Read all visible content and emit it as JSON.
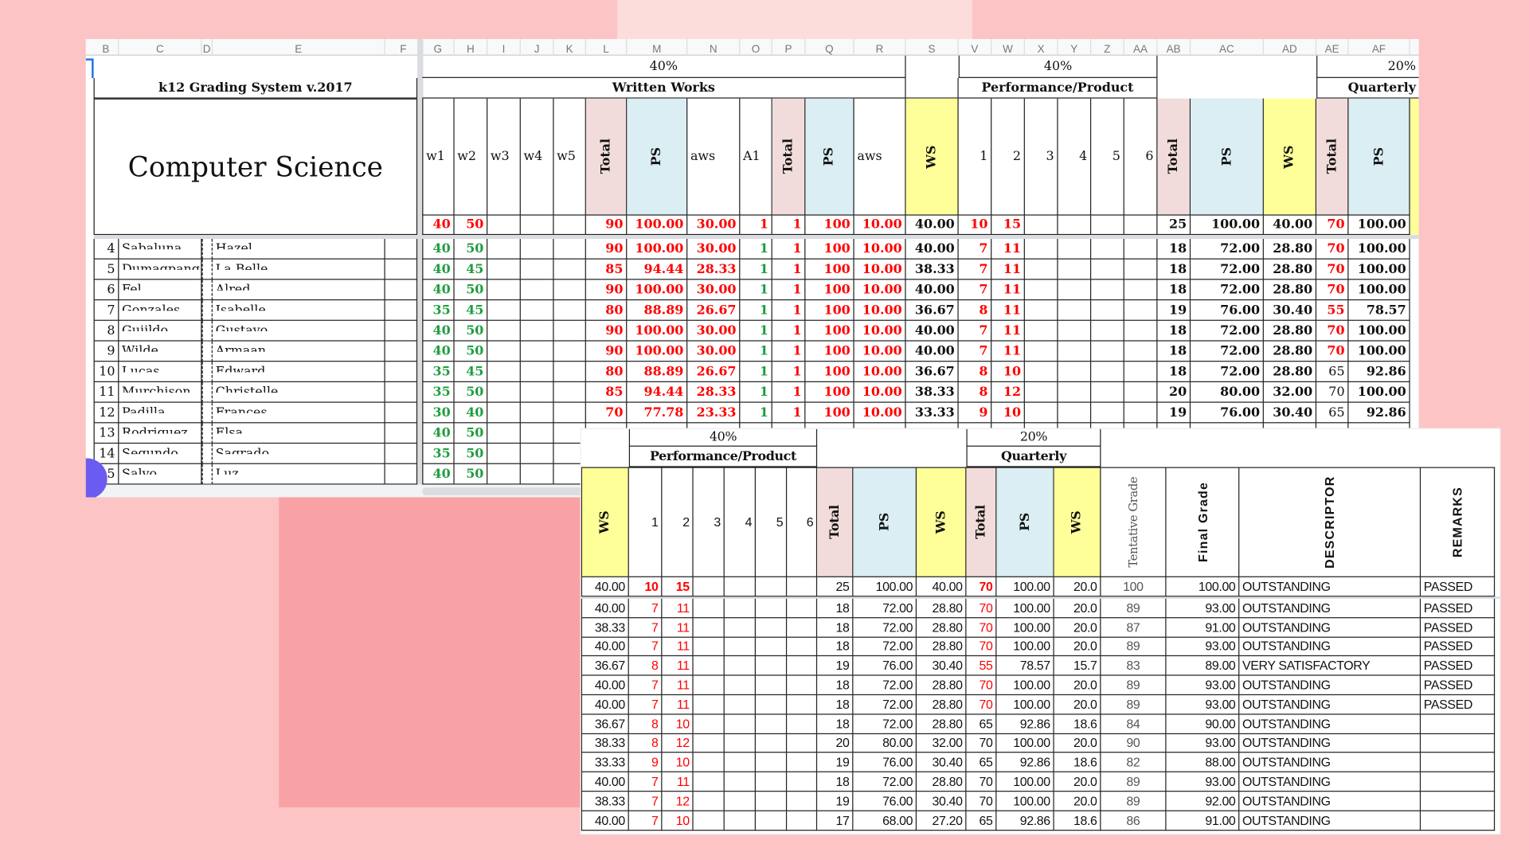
{
  "colors": {
    "background": "#fcc4c4",
    "red": "#ff0000",
    "green": "#1e9e3e",
    "total_fill": "#f2dcdb",
    "ps_fill": "#daeef3",
    "ws_fill": "#ffff99",
    "accent": "#6a5cf0"
  },
  "sheet1": {
    "col_letters": [
      "B",
      "C",
      "D",
      "E",
      "F",
      "G",
      "H",
      "I",
      "J",
      "K",
      "L",
      "M",
      "N",
      "O",
      "P",
      "Q",
      "R",
      "S",
      "V",
      "W",
      "X",
      "Y",
      "Z",
      "AA",
      "AB",
      "AC",
      "AD",
      "AE",
      "AF"
    ],
    "title": "k12 Grading System v.2017",
    "subject": "Computer Science",
    "ww_weight": "40%",
    "ww_label": "Written Works",
    "pt_weight": "40%",
    "pt_label": "Performance/Product",
    "qa_weight": "20%",
    "qa_label": "Quarterly",
    "headers": [
      "w1",
      "w2",
      "w3",
      "w4",
      "w5",
      "Total",
      "PS",
      "aws",
      "A1",
      "Total",
      "PS",
      "aws",
      "WS",
      "1",
      "2",
      "3",
      "4",
      "5",
      "6",
      "Total",
      "PS",
      "WS",
      "Total",
      "PS"
    ],
    "max_row": [
      "40",
      "50",
      "",
      "",
      "",
      "90",
      "100.00",
      "30.00",
      "1",
      "1",
      "100",
      "10.00",
      "40.00",
      "10",
      "15",
      "",
      "",
      "",
      "",
      "25",
      "100.00",
      "40.00",
      "70",
      "100.00"
    ],
    "rows": [
      {
        "num": "4",
        "last": "Sabaluna",
        "first": "Hazel",
        "q_total_red": true,
        "cells": [
          "40",
          "50",
          "",
          "",
          "",
          "90",
          "100.00",
          "30.00",
          "1",
          "1",
          "100",
          "10.00",
          "40.00",
          "7",
          "11",
          "",
          "",
          "",
          "",
          "18",
          "72.00",
          "28.80",
          "70",
          "100.00"
        ]
      },
      {
        "num": "5",
        "last": "Dumagpang",
        "first": "La Belle",
        "q_total_red": true,
        "cells": [
          "40",
          "45",
          "",
          "",
          "",
          "85",
          "94.44",
          "28.33",
          "1",
          "1",
          "100",
          "10.00",
          "38.33",
          "7",
          "11",
          "",
          "",
          "",
          "",
          "18",
          "72.00",
          "28.80",
          "70",
          "100.00"
        ]
      },
      {
        "num": "6",
        "last": "Fel",
        "first": "Alred",
        "q_total_red": true,
        "cells": [
          "40",
          "50",
          "",
          "",
          "",
          "90",
          "100.00",
          "30.00",
          "1",
          "1",
          "100",
          "10.00",
          "40.00",
          "7",
          "11",
          "",
          "",
          "",
          "",
          "18",
          "72.00",
          "28.80",
          "70",
          "100.00"
        ]
      },
      {
        "num": "7",
        "last": "Gonzales",
        "first": "Isabelle",
        "q_total_red": true,
        "cells": [
          "35",
          "45",
          "",
          "",
          "",
          "80",
          "88.89",
          "26.67",
          "1",
          "1",
          "100",
          "10.00",
          "36.67",
          "8",
          "11",
          "",
          "",
          "",
          "",
          "19",
          "76.00",
          "30.40",
          "55",
          "78.57"
        ]
      },
      {
        "num": "8",
        "last": "Guiildo",
        "first": "Gustavo",
        "q_total_red": true,
        "cells": [
          "40",
          "50",
          "",
          "",
          "",
          "90",
          "100.00",
          "30.00",
          "1",
          "1",
          "100",
          "10.00",
          "40.00",
          "7",
          "11",
          "",
          "",
          "",
          "",
          "18",
          "72.00",
          "28.80",
          "70",
          "100.00"
        ]
      },
      {
        "num": "9",
        "last": "Wilde",
        "first": "Armaan",
        "q_total_red": true,
        "cells": [
          "40",
          "50",
          "",
          "",
          "",
          "90",
          "100.00",
          "30.00",
          "1",
          "1",
          "100",
          "10.00",
          "40.00",
          "7",
          "11",
          "",
          "",
          "",
          "",
          "18",
          "72.00",
          "28.80",
          "70",
          "100.00"
        ]
      },
      {
        "num": "10",
        "last": "Lucas",
        "first": "Edward",
        "q_total_red": false,
        "cells": [
          "35",
          "45",
          "",
          "",
          "",
          "80",
          "88.89",
          "26.67",
          "1",
          "1",
          "100",
          "10.00",
          "36.67",
          "8",
          "10",
          "",
          "",
          "",
          "",
          "18",
          "72.00",
          "28.80",
          "65",
          "92.86"
        ]
      },
      {
        "num": "11",
        "last": "Murchison",
        "first": "Christelle",
        "q_total_red": false,
        "cells": [
          "35",
          "50",
          "",
          "",
          "",
          "85",
          "94.44",
          "28.33",
          "1",
          "1",
          "100",
          "10.00",
          "38.33",
          "8",
          "12",
          "",
          "",
          "",
          "",
          "20",
          "80.00",
          "32.00",
          "70",
          "100.00"
        ]
      },
      {
        "num": "12",
        "last": "Padilla",
        "first": "Frances",
        "q_total_red": false,
        "cells": [
          "30",
          "40",
          "",
          "",
          "",
          "70",
          "77.78",
          "23.33",
          "1",
          "1",
          "100",
          "10.00",
          "33.33",
          "9",
          "10",
          "",
          "",
          "",
          "",
          "19",
          "76.00",
          "30.40",
          "65",
          "92.86"
        ]
      },
      {
        "num": "13",
        "last": "Rodriguez",
        "first": "Elsa",
        "q_total_red": false,
        "cells": [
          "40",
          "50"
        ]
      },
      {
        "num": "14",
        "last": "Segundo",
        "first": "Sagrado",
        "q_total_red": false,
        "cells": [
          "35",
          "50"
        ]
      },
      {
        "num": "15",
        "last": "Salvo",
        "first": "Luz",
        "q_total_red": false,
        "cells": [
          "40",
          "50"
        ]
      }
    ]
  },
  "sheet2": {
    "pt_weight": "40%",
    "pt_label": "Performance/Product",
    "qa_weight": "20%",
    "qa_label": "Quarterly",
    "headers": [
      "WS",
      "1",
      "2",
      "3",
      "4",
      "5",
      "6",
      "Total",
      "PS",
      "WS",
      "Total",
      "PS",
      "WS",
      "Tentative Grade",
      "Final Grade",
      "DESCRIPTOR",
      "REMARKS"
    ],
    "max_row": [
      "40.00",
      "10",
      "15",
      "",
      "",
      "",
      "",
      "25",
      "100.00",
      "40.00",
      "70",
      "100.00",
      "20.0",
      "100",
      "100.00",
      "OUTSTANDING",
      "PASSED"
    ],
    "rows": [
      {
        "q_total_red": true,
        "cells": [
          "40.00",
          "7",
          "11",
          "",
          "",
          "",
          "",
          "18",
          "72.00",
          "28.80",
          "70",
          "100.00",
          "20.0",
          "89",
          "93.00",
          "OUTSTANDING",
          "PASSED"
        ]
      },
      {
        "q_total_red": true,
        "cells": [
          "38.33",
          "7",
          "11",
          "",
          "",
          "",
          "",
          "18",
          "72.00",
          "28.80",
          "70",
          "100.00",
          "20.0",
          "87",
          "91.00",
          "OUTSTANDING",
          "PASSED"
        ]
      },
      {
        "q_total_red": true,
        "cells": [
          "40.00",
          "7",
          "11",
          "",
          "",
          "",
          "",
          "18",
          "72.00",
          "28.80",
          "70",
          "100.00",
          "20.0",
          "89",
          "93.00",
          "OUTSTANDING",
          "PASSED"
        ]
      },
      {
        "q_total_red": true,
        "cells": [
          "36.67",
          "8",
          "11",
          "",
          "",
          "",
          "",
          "19",
          "76.00",
          "30.40",
          "55",
          "78.57",
          "15.7",
          "83",
          "89.00",
          "VERY SATISFACTORY",
          "PASSED"
        ]
      },
      {
        "q_total_red": true,
        "cells": [
          "40.00",
          "7",
          "11",
          "",
          "",
          "",
          "",
          "18",
          "72.00",
          "28.80",
          "70",
          "100.00",
          "20.0",
          "89",
          "93.00",
          "OUTSTANDING",
          "PASSED"
        ]
      },
      {
        "q_total_red": true,
        "cells": [
          "40.00",
          "7",
          "11",
          "",
          "",
          "",
          "",
          "18",
          "72.00",
          "28.80",
          "70",
          "100.00",
          "20.0",
          "89",
          "93.00",
          "OUTSTANDING",
          "PASSED"
        ]
      },
      {
        "q_total_red": false,
        "cells": [
          "36.67",
          "8",
          "10",
          "",
          "",
          "",
          "",
          "18",
          "72.00",
          "28.80",
          "65",
          "92.86",
          "18.6",
          "84",
          "90.00",
          "OUTSTANDING",
          ""
        ]
      },
      {
        "q_total_red": false,
        "cells": [
          "38.33",
          "8",
          "12",
          "",
          "",
          "",
          "",
          "20",
          "80.00",
          "32.00",
          "70",
          "100.00",
          "20.0",
          "90",
          "93.00",
          "OUTSTANDING",
          ""
        ]
      },
      {
        "q_total_red": false,
        "cells": [
          "33.33",
          "9",
          "10",
          "",
          "",
          "",
          "",
          "19",
          "76.00",
          "30.40",
          "65",
          "92.86",
          "18.6",
          "82",
          "88.00",
          "OUTSTANDING",
          ""
        ]
      },
      {
        "q_total_red": false,
        "cells": [
          "40.00",
          "7",
          "11",
          "",
          "",
          "",
          "",
          "18",
          "72.00",
          "28.80",
          "70",
          "100.00",
          "20.0",
          "89",
          "93.00",
          "OUTSTANDING",
          ""
        ]
      },
      {
        "q_total_red": false,
        "cells": [
          "38.33",
          "7",
          "12",
          "",
          "",
          "",
          "",
          "19",
          "76.00",
          "30.40",
          "70",
          "100.00",
          "20.0",
          "89",
          "92.00",
          "OUTSTANDING",
          ""
        ]
      },
      {
        "q_total_red": false,
        "cells": [
          "40.00",
          "7",
          "10",
          "",
          "",
          "",
          "",
          "17",
          "68.00",
          "27.20",
          "65",
          "92.86",
          "18.6",
          "86",
          "91.00",
          "OUTSTANDING",
          ""
        ]
      }
    ]
  }
}
